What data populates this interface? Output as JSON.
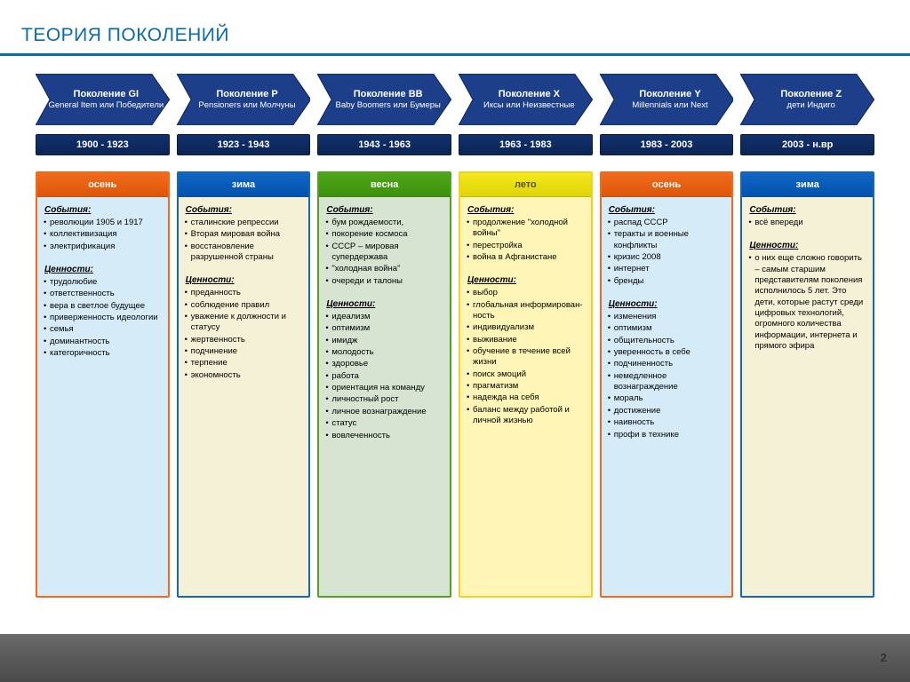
{
  "title": {
    "text": "ТЕОРИЯ ПОКОЛЕНИЙ",
    "color": "#0b6ba3"
  },
  "underline_color": "#0b6ba3",
  "page_number": "2",
  "arrow_fill": "#1d3f8a",
  "year_box_bg": "#13316e",
  "events_label": "События:",
  "values_label": "Ценности:",
  "columns": [
    {
      "arrow_title": "Поколение GI",
      "arrow_sub": "General Item или Победители",
      "years": "1900 - 1923",
      "season": "осень",
      "border": "#f26a1b",
      "header_bg": "#f26a1b",
      "header_text": "#ffffff",
      "body_bg": "#d5ecf8",
      "events": [
        "революции 1905 и 1917",
        "коллективизация",
        "электрификация"
      ],
      "values": [
        "трудолюбие",
        "ответственность",
        "вера в светлое будущее",
        "приверженность идеологии",
        "семья",
        "доминантность",
        "категоричность"
      ],
      "values_free": null
    },
    {
      "arrow_title": "Поколение P",
      "arrow_sub": "Pensioners или Молчуны",
      "years": "1923 - 1943",
      "season": "зима",
      "border": "#1266c2",
      "header_bg": "#1266c2",
      "header_text": "#ffffff",
      "body_bg": "#f5f1d6",
      "events": [
        "сталинские репрессии",
        "Вторая мировая война",
        "восстановление разрушенной страны"
      ],
      "values": [
        "преданность",
        "соблюдение правил",
        "уважение к должности и статусу",
        "жертвенность",
        "подчинение",
        "терпение",
        "экономность"
      ],
      "values_free": null
    },
    {
      "arrow_title": "Поколение BB",
      "arrow_sub": "Baby Boomers или Бумеры",
      "years": "1943 - 1963",
      "season": "весна",
      "border": "#4fa51c",
      "header_bg": "#4fa51c",
      "header_text": "#ffffff",
      "body_bg": "#d6e4d1",
      "events": [
        "бум рождаемости,",
        "покорение космоса",
        "СССР – мировая супердержава",
        "\"холодная война\"",
        "очереди и талоны"
      ],
      "values": [
        "идеализм",
        "оптимизм",
        "имидж",
        "молодость",
        "здоровье",
        "работа",
        "ориентация на команду",
        "личностный рост",
        "личное вознаграждение",
        "статус",
        "вовлеченность"
      ],
      "values_free": null
    },
    {
      "arrow_title": "Поколение X",
      "arrow_sub": "Иксы или Неизвестные",
      "years": "1963 - 1983",
      "season": "лето",
      "border": "#f2d21b",
      "header_bg": "#f2e81b",
      "header_text": "#555500",
      "body_bg": "#fff5b6",
      "events": [
        "продолжение \"холодной войны\"",
        "перестройка",
        "война в Афганистане"
      ],
      "values": [
        "выбор",
        "глобальная информирован-ность",
        "индивидуализм",
        "выживание",
        "обучение в течение всей жизни",
        "поиск эмоций",
        "прагматизм",
        "надежда на себя",
        "баланс между работой и личной жизнью"
      ],
      "values_free": null
    },
    {
      "arrow_title": "Поколение Y",
      "arrow_sub": "Millennials или Next",
      "years": "1983 - 2003",
      "season": "осень",
      "border": "#f26a1b",
      "header_bg": "#f26a1b",
      "header_text": "#ffffff",
      "body_bg": "#d5ecf8",
      "events": [
        "распад СССР",
        "теракты и военные конфликты",
        "кризис 2008",
        "интернет",
        "бренды"
      ],
      "values": [
        "изменения",
        "оптимизм",
        "общительность",
        "уверенность в себе",
        "подчиненность",
        "немедленное вознаграждение",
        "мораль",
        "достижение",
        "наивность",
        "профи в технике"
      ],
      "values_free": null
    },
    {
      "arrow_title": "Поколение Z",
      "arrow_sub": "дети Индиго",
      "years": "2003 - н.вр",
      "season": "зима",
      "border": "#1266c2",
      "header_bg": "#1266c2",
      "header_text": "#ffffff",
      "body_bg": "#f5f1d6",
      "events": [
        "всё впереди"
      ],
      "values": null,
      "values_free": "о них еще сложно говорить – самым старшим представителям поколения исполнилось 5 лет. Это дети, которые растут среди цифровых технологий, огромного количества информации, интернета и прямого эфира"
    }
  ]
}
